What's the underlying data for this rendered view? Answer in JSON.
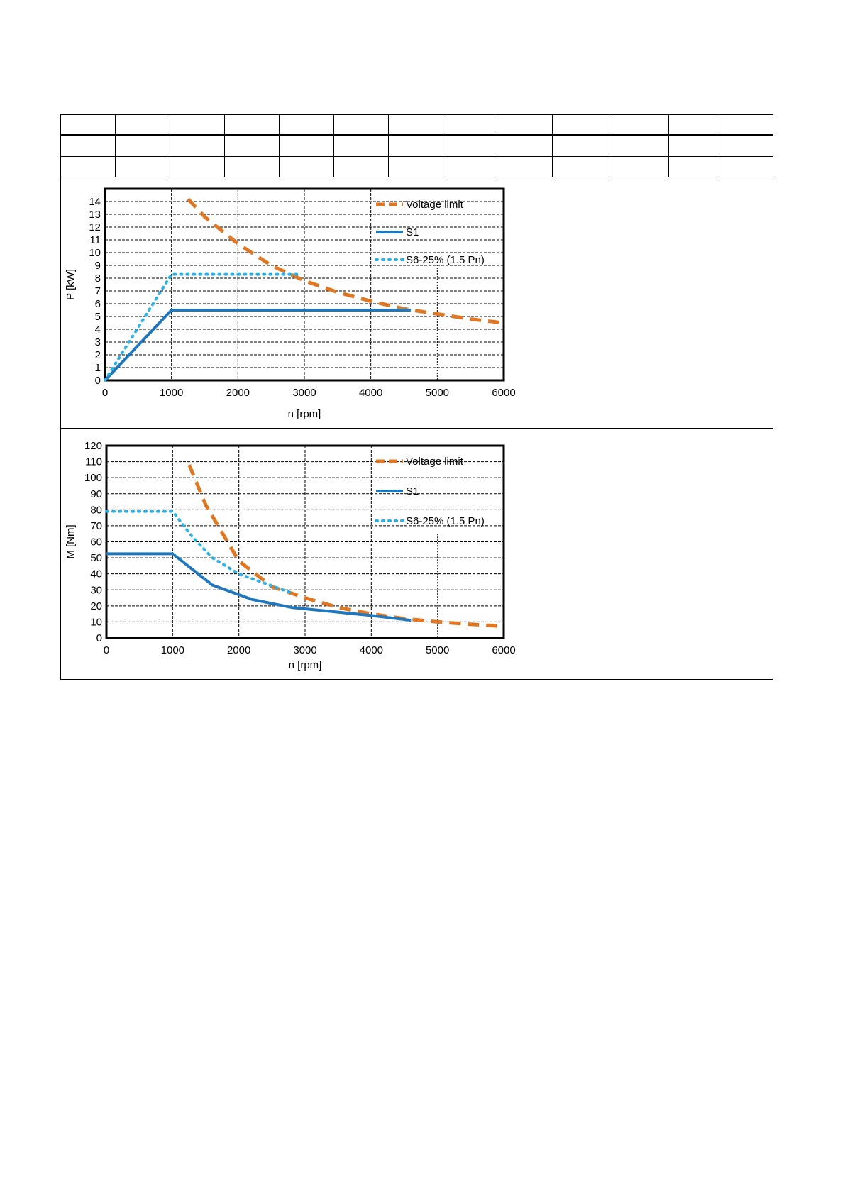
{
  "colors": {
    "voltage_limit": "#E07722",
    "s1": "#1F78BE",
    "s6": "#2AB0E4",
    "grid": "#000000",
    "frame": "#000000"
  },
  "header_table": {
    "rows": 3,
    "columns": 13,
    "cells_text": ""
  },
  "chart_data": [
    {
      "type": "line",
      "title": "",
      "xlabel": "n [rpm]",
      "ylabel": "P [kW]",
      "xlim": [
        0,
        6000
      ],
      "ylim": [
        0,
        15
      ],
      "x_ticks": [
        0,
        1000,
        2000,
        3000,
        4000,
        5000,
        6000
      ],
      "x_tick_labels": [
        "0",
        "1000",
        "2000",
        "3000",
        "4000",
        "5000",
        "6000"
      ],
      "y_ticks": [
        0,
        1,
        2,
        3,
        4,
        5,
        6,
        7,
        8,
        9,
        10,
        11,
        12,
        13,
        14
      ],
      "y_tick_labels": [
        "0",
        "1",
        "2",
        "3",
        "4",
        "5",
        "6",
        "7",
        "8",
        "9",
        "10",
        "11",
        "12",
        "13",
        "14"
      ],
      "grid": true,
      "legend_position": "top-right",
      "series": [
        {
          "name": "Voltage limit",
          "style": "dashed",
          "color_key": "voltage_limit",
          "x": [
            1250,
            1500,
            2000,
            2500,
            3000,
            3500,
            4000,
            4500,
            5000,
            5500,
            6000
          ],
          "y": [
            14.2,
            12.8,
            10.7,
            9.0,
            7.8,
            6.9,
            6.2,
            5.6,
            5.2,
            4.8,
            4.5
          ]
        },
        {
          "name": "S1",
          "style": "solid",
          "color_key": "s1",
          "x": [
            0,
            1000,
            4600
          ],
          "y": [
            0,
            5.5,
            5.5
          ]
        },
        {
          "name": "S6-25% (1.5 Pn)",
          "style": "dotted",
          "color_key": "s6",
          "x": [
            0,
            1000,
            2900
          ],
          "y": [
            0,
            8.3,
            8.3
          ]
        }
      ]
    },
    {
      "type": "line",
      "title": "",
      "xlabel": "n [rpm]",
      "ylabel": "M [Nm]",
      "xlim": [
        0,
        6000
      ],
      "ylim": [
        0,
        120
      ],
      "x_ticks": [
        0,
        1000,
        2000,
        3000,
        4000,
        5000,
        6000
      ],
      "x_tick_labels": [
        "0",
        "1000",
        "2000",
        "3000",
        "4000",
        "5000",
        "6000"
      ],
      "y_ticks": [
        0,
        10,
        20,
        30,
        40,
        50,
        60,
        70,
        80,
        90,
        100,
        110,
        120
      ],
      "y_tick_labels": [
        "0",
        "10",
        "20",
        "30",
        "40",
        "50",
        "60",
        "70",
        "80",
        "90",
        "100",
        "110",
        "120"
      ],
      "grid": true,
      "legend_position": "top-right",
      "series": [
        {
          "name": "Voltage limit",
          "style": "dashed",
          "color_key": "voltage_limit",
          "x": [
            1250,
            1500,
            2000,
            2500,
            3000,
            3500,
            4000,
            4500,
            5000,
            5500,
            5900
          ],
          "y": [
            108,
            83,
            48,
            32,
            25,
            19,
            15,
            12,
            10,
            8.5,
            7.5
          ]
        },
        {
          "name": "S1",
          "style": "solid",
          "color_key": "s1",
          "x": [
            0,
            1000,
            1600,
            2200,
            2800,
            3400,
            4000,
            4600
          ],
          "y": [
            52.5,
            52.5,
            33,
            24,
            19,
            16.5,
            14,
            11
          ]
        },
        {
          "name": "S6-25% (1.5 Pn)",
          "style": "dotted",
          "color_key": "s6",
          "x": [
            0,
            1000,
            1300,
            1600,
            2000,
            2400,
            2800
          ],
          "y": [
            79,
            79,
            63,
            50,
            40,
            34,
            28
          ]
        }
      ]
    }
  ]
}
